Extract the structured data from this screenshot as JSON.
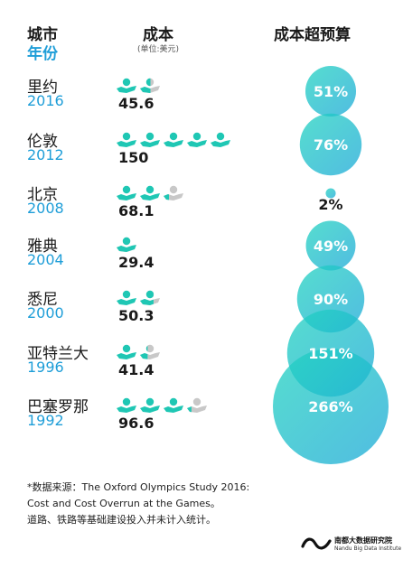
{
  "header": {
    "city": "城市",
    "year": "年份",
    "cost": "成本",
    "unit": "(单位:美元)",
    "overrun": "成本超预算"
  },
  "colors": {
    "teal": "#1fc7b4",
    "blue": "#1f9ed8",
    "icon_gray": "#c8c8c8",
    "text": "#1a1a1a"
  },
  "rows": [
    {
      "city": "里约",
      "year": "2016",
      "cost": "45.6",
      "overrun": "51%"
    },
    {
      "city": "伦敦",
      "year": "2012",
      "cost": "150",
      "overrun": "76%"
    },
    {
      "city": "北京",
      "year": "2008",
      "cost": "68.1",
      "overrun": "2%"
    },
    {
      "city": "雅典",
      "year": "2004",
      "cost": "29.4",
      "overrun": "49%"
    },
    {
      "city": "悉尼",
      "year": "2000",
      "cost": "50.3",
      "overrun": "90%"
    },
    {
      "city": "亚特兰大",
      "year": "1996",
      "cost": "41.4",
      "overrun": "151%"
    },
    {
      "city": "巴塞罗那",
      "year": "1992",
      "cost": "96.6",
      "overrun": "266%"
    }
  ],
  "chart_data": {
    "type": "bubble",
    "categories": [
      "里约 2016",
      "伦敦 2012",
      "北京 2008",
      "雅典 2004",
      "悉尼 2000",
      "亚特兰大 1996",
      "巴塞罗那 1992"
    ],
    "series": [
      {
        "values": [
          45.6,
          150,
          68.1,
          29.4,
          50.3,
          41.4,
          96.6
        ]
      },
      {
        "values": [
          51,
          76,
          2,
          49,
          90,
          151,
          266
        ]
      }
    ],
    "icons_per_unit": 30
  },
  "footer": {
    "line1": "*数据来源：The Oxford Olympics Study 2016:",
    "line2": "Cost and Cost Overrun at the Games。",
    "line3": "道路、铁路等基础建设投入并未计入统计。"
  },
  "logo": {
    "cn": "南都大数据研究院",
    "en": "Nandu Big Data Institute"
  }
}
